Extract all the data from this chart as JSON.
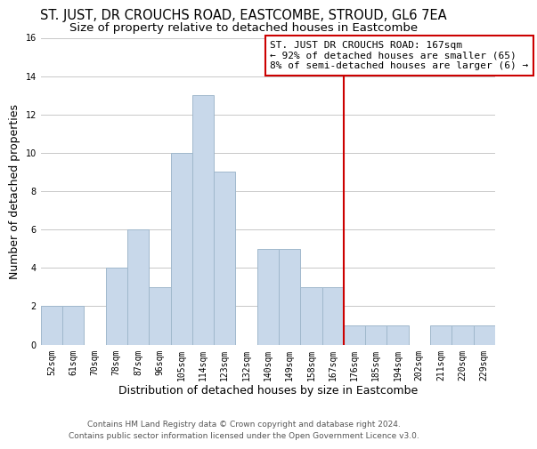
{
  "title": "ST. JUST, DR CROUCHS ROAD, EASTCOMBE, STROUD, GL6 7EA",
  "subtitle": "Size of property relative to detached houses in Eastcombe",
  "xlabel": "Distribution of detached houses by size in Eastcombe",
  "ylabel": "Number of detached properties",
  "bar_labels": [
    "52sqm",
    "61sqm",
    "70sqm",
    "78sqm",
    "87sqm",
    "96sqm",
    "105sqm",
    "114sqm",
    "123sqm",
    "132sqm",
    "140sqm",
    "149sqm",
    "158sqm",
    "167sqm",
    "176sqm",
    "185sqm",
    "194sqm",
    "202sqm",
    "211sqm",
    "220sqm",
    "229sqm"
  ],
  "bar_values": [
    2,
    2,
    0,
    4,
    6,
    3,
    10,
    13,
    9,
    0,
    5,
    5,
    3,
    3,
    1,
    1,
    1,
    0,
    1,
    1,
    1
  ],
  "bar_color": "#c8d8ea",
  "bar_edge_color": "#a0b8cc",
  "grid_color": "#c8c8c8",
  "marker_label_index": 13,
  "annotation_title": "ST. JUST DR CROUCHS ROAD: 167sqm",
  "annotation_line1": "← 92% of detached houses are smaller (65)",
  "annotation_line2": "8% of semi-detached houses are larger (6) →",
  "annotation_box_color": "#ffffff",
  "annotation_border_color": "#cc0000",
  "marker_line_color": "#cc0000",
  "ylim": [
    0,
    16
  ],
  "yticks": [
    0,
    2,
    4,
    6,
    8,
    10,
    12,
    14,
    16
  ],
  "footer_line1": "Contains HM Land Registry data © Crown copyright and database right 2024.",
  "footer_line2": "Contains public sector information licensed under the Open Government Licence v3.0.",
  "bg_color": "#ffffff",
  "title_fontsize": 10.5,
  "subtitle_fontsize": 9.5,
  "axis_label_fontsize": 9,
  "tick_fontsize": 7,
  "annotation_fontsize": 8,
  "footer_fontsize": 6.5
}
